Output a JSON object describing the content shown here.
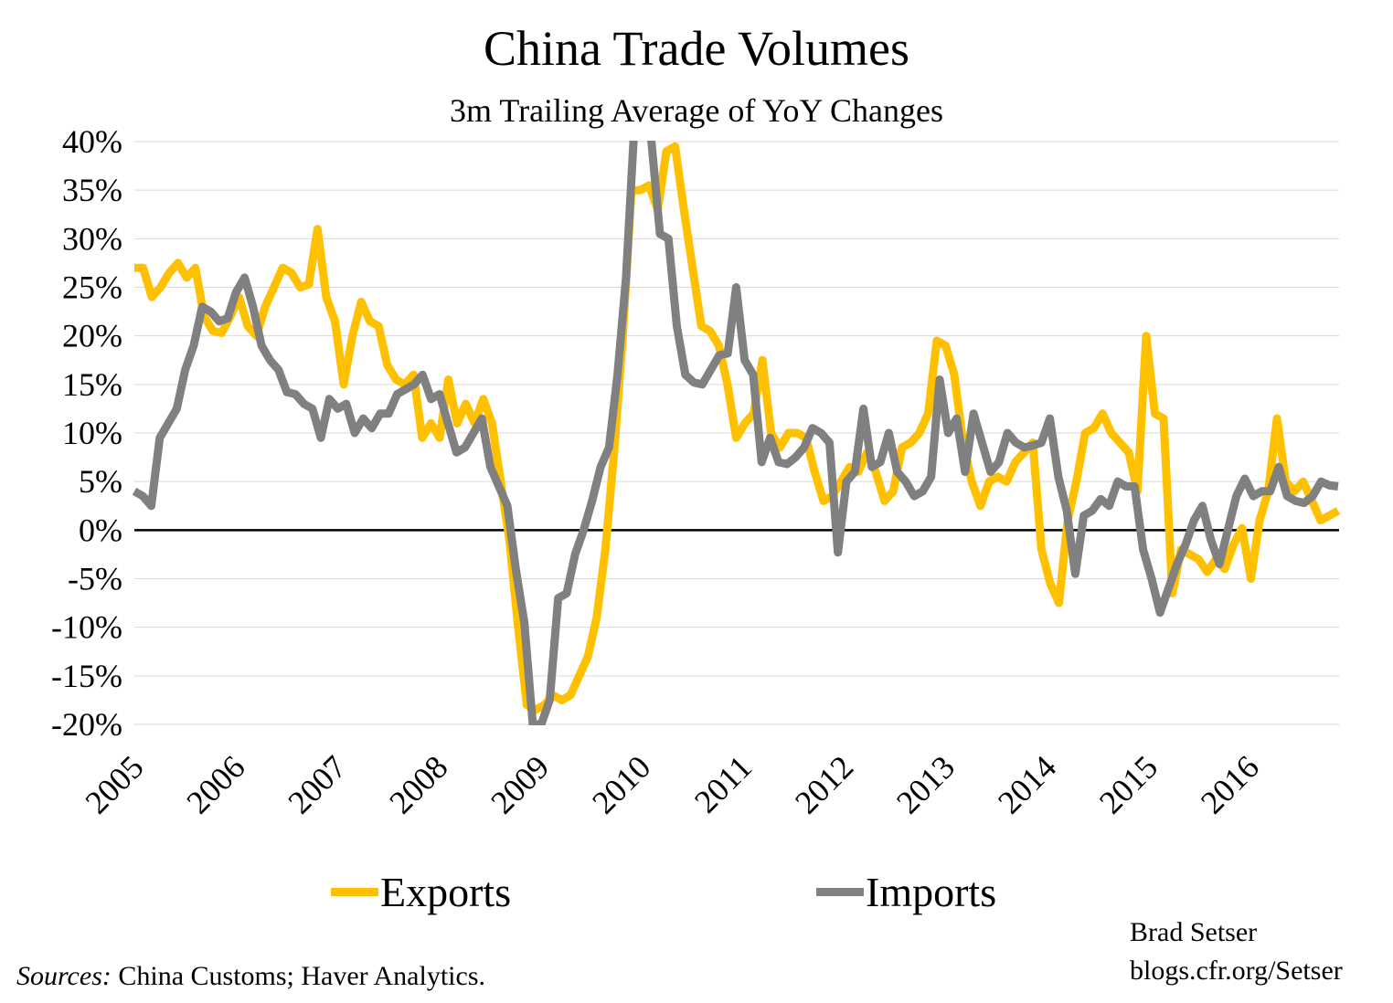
{
  "chart_data": {
    "type": "line",
    "title": "China Trade Volumes",
    "subtitle": "3m Trailing Average of YoY Changes",
    "xlabel": "",
    "ylabel": "",
    "x_range": [
      2005.0,
      2016.87
    ],
    "xlim": [
      2005.0,
      2016.88
    ],
    "ylim": [
      -20,
      40
    ],
    "y_ticks": [
      40,
      35,
      30,
      25,
      20,
      15,
      10,
      5,
      0,
      -5,
      -10,
      -15,
      -20
    ],
    "y_tick_labels": [
      "40%",
      "35%",
      "30%",
      "25%",
      "20%",
      "15%",
      "10%",
      "5%",
      "0%",
      "-5%",
      "-10%",
      "-15%",
      "-20%"
    ],
    "x_ticks": [
      2005,
      2006,
      2007,
      2008,
      2009,
      2010,
      2011,
      2012,
      2013,
      2014,
      2015,
      2016
    ],
    "x_tick_labels": [
      "2005",
      "2006",
      "2007",
      "2008",
      "2009",
      "2010",
      "2011",
      "2012",
      "2013",
      "2014",
      "2015",
      "2016"
    ],
    "grid": true,
    "legend_position": "bottom",
    "series": [
      {
        "name": "Exports",
        "color": "#FFC000",
        "values": [
          27,
          27,
          24,
          25,
          26.5,
          27.5,
          26,
          27,
          22,
          20.5,
          20.3,
          22,
          24,
          21,
          20,
          23,
          25,
          27,
          26.5,
          25,
          25.3,
          31,
          24,
          21.5,
          15,
          20,
          23.5,
          21.5,
          21,
          17,
          15.5,
          15,
          16,
          9.5,
          11,
          9.5,
          15.5,
          11,
          13,
          11,
          13.5,
          11,
          5,
          -1,
          -10,
          -18,
          -18.5,
          -18,
          -17,
          -17.5,
          -17,
          -15,
          -13,
          -9,
          -2,
          8,
          20,
          35,
          35,
          35.5,
          33,
          39,
          39.5,
          33,
          27,
          21,
          20.5,
          19,
          15,
          9.5,
          11,
          12,
          17.5,
          10,
          8.5,
          10,
          10,
          9.5,
          6,
          3,
          3.5,
          5,
          6.5,
          6,
          8,
          6,
          3,
          4,
          8.5,
          9,
          10,
          12,
          19.5,
          19,
          16,
          9,
          5,
          2.5,
          5,
          5.5,
          5,
          7,
          8,
          9,
          -2,
          -5.5,
          -7.5,
          1,
          5,
          10,
          10.5,
          12,
          10,
          9,
          8,
          4,
          20,
          12,
          11.5,
          -6.5,
          -2,
          -2.5,
          -3,
          -4.3,
          -3,
          -4,
          -1.5,
          0.2,
          -5,
          1,
          4,
          11.5,
          5,
          4,
          5,
          3,
          1,
          1.5,
          2
        ]
      },
      {
        "name": "Imports",
        "color": "#808080",
        "values": [
          4,
          3.5,
          2.5,
          9.5,
          11,
          12.5,
          16.5,
          19,
          23,
          22.5,
          21.5,
          21.8,
          24.5,
          26,
          23,
          19,
          17.5,
          16.5,
          14.2,
          14,
          13,
          12.5,
          9.5,
          13.5,
          12.5,
          13,
          10,
          11.5,
          10.5,
          12,
          12,
          14,
          14.5,
          15,
          16,
          13.5,
          14,
          11,
          8,
          8.5,
          10,
          11.5,
          6.5,
          4.5,
          2.5,
          -4,
          -9.5,
          -20,
          -20,
          -17.5,
          -7,
          -6.5,
          -2.5,
          0,
          3,
          6.5,
          8.5,
          16,
          26,
          42,
          50,
          40,
          30.5,
          30,
          21,
          16,
          15.2,
          15,
          16.5,
          18,
          18.2,
          25,
          17.5,
          16,
          7,
          9.5,
          7,
          6.8,
          7.5,
          8.5,
          10.5,
          10,
          9,
          -2.3,
          5,
          6,
          12.5,
          6.5,
          7,
          10,
          6,
          5,
          3.5,
          4,
          5.5,
          15.5,
          10,
          11.5,
          6,
          12,
          9,
          6,
          7,
          10,
          9,
          8.5,
          8.7,
          9,
          11.5,
          5.5,
          2,
          -4.5,
          1.5,
          2,
          3.2,
          2.5,
          5,
          4.5,
          4.5,
          -2,
          -5,
          -8.5,
          -6,
          -3.5,
          -1.5,
          1,
          2.5,
          -1,
          -3.5,
          0,
          3.5,
          5.3,
          3.5,
          4,
          4,
          6.5,
          3.5,
          3,
          2.8,
          3.5,
          5,
          4.6,
          4.5
        ]
      }
    ]
  },
  "sources_label": "Sources:",
  "sources_text": " China Customs; Haver Analytics.",
  "author": "Brad Setser",
  "blog": "blogs.cfr.org/Setser"
}
